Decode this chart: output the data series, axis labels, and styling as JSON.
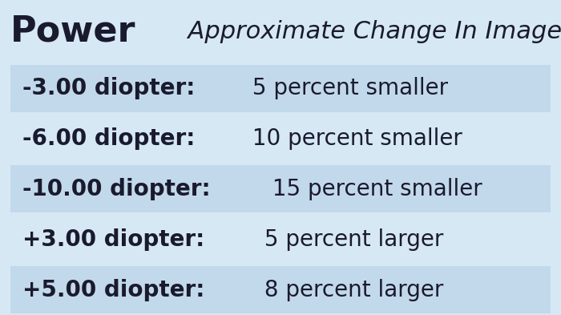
{
  "title_bold": "Power",
  "title_italic": "  Approximate Change In Image Size",
  "background_color": "#d6e8f4",
  "row_bg_color": "#c2d9eb",
  "rows": [
    {
      "bold": "-3.00 diopter:",
      "normal": " 5 percent smaller",
      "shaded": true
    },
    {
      "bold": "-6.00 diopter:",
      "normal": " 10 percent smaller",
      "shaded": false
    },
    {
      "bold": "-10.00 diopter:",
      "normal": " 15 percent smaller",
      "shaded": true
    },
    {
      "bold": "+3.00 diopter:",
      "normal": " 5 percent larger",
      "shaded": false
    },
    {
      "bold": "+5.00 diopter:",
      "normal": " 8 percent larger",
      "shaded": true
    }
  ],
  "title_bold_fontsize": 32,
  "title_italic_fontsize": 22,
  "row_fontsize": 20,
  "text_color": "#1a1a2e",
  "figsize": [
    7.0,
    3.93
  ],
  "dpi": 100
}
